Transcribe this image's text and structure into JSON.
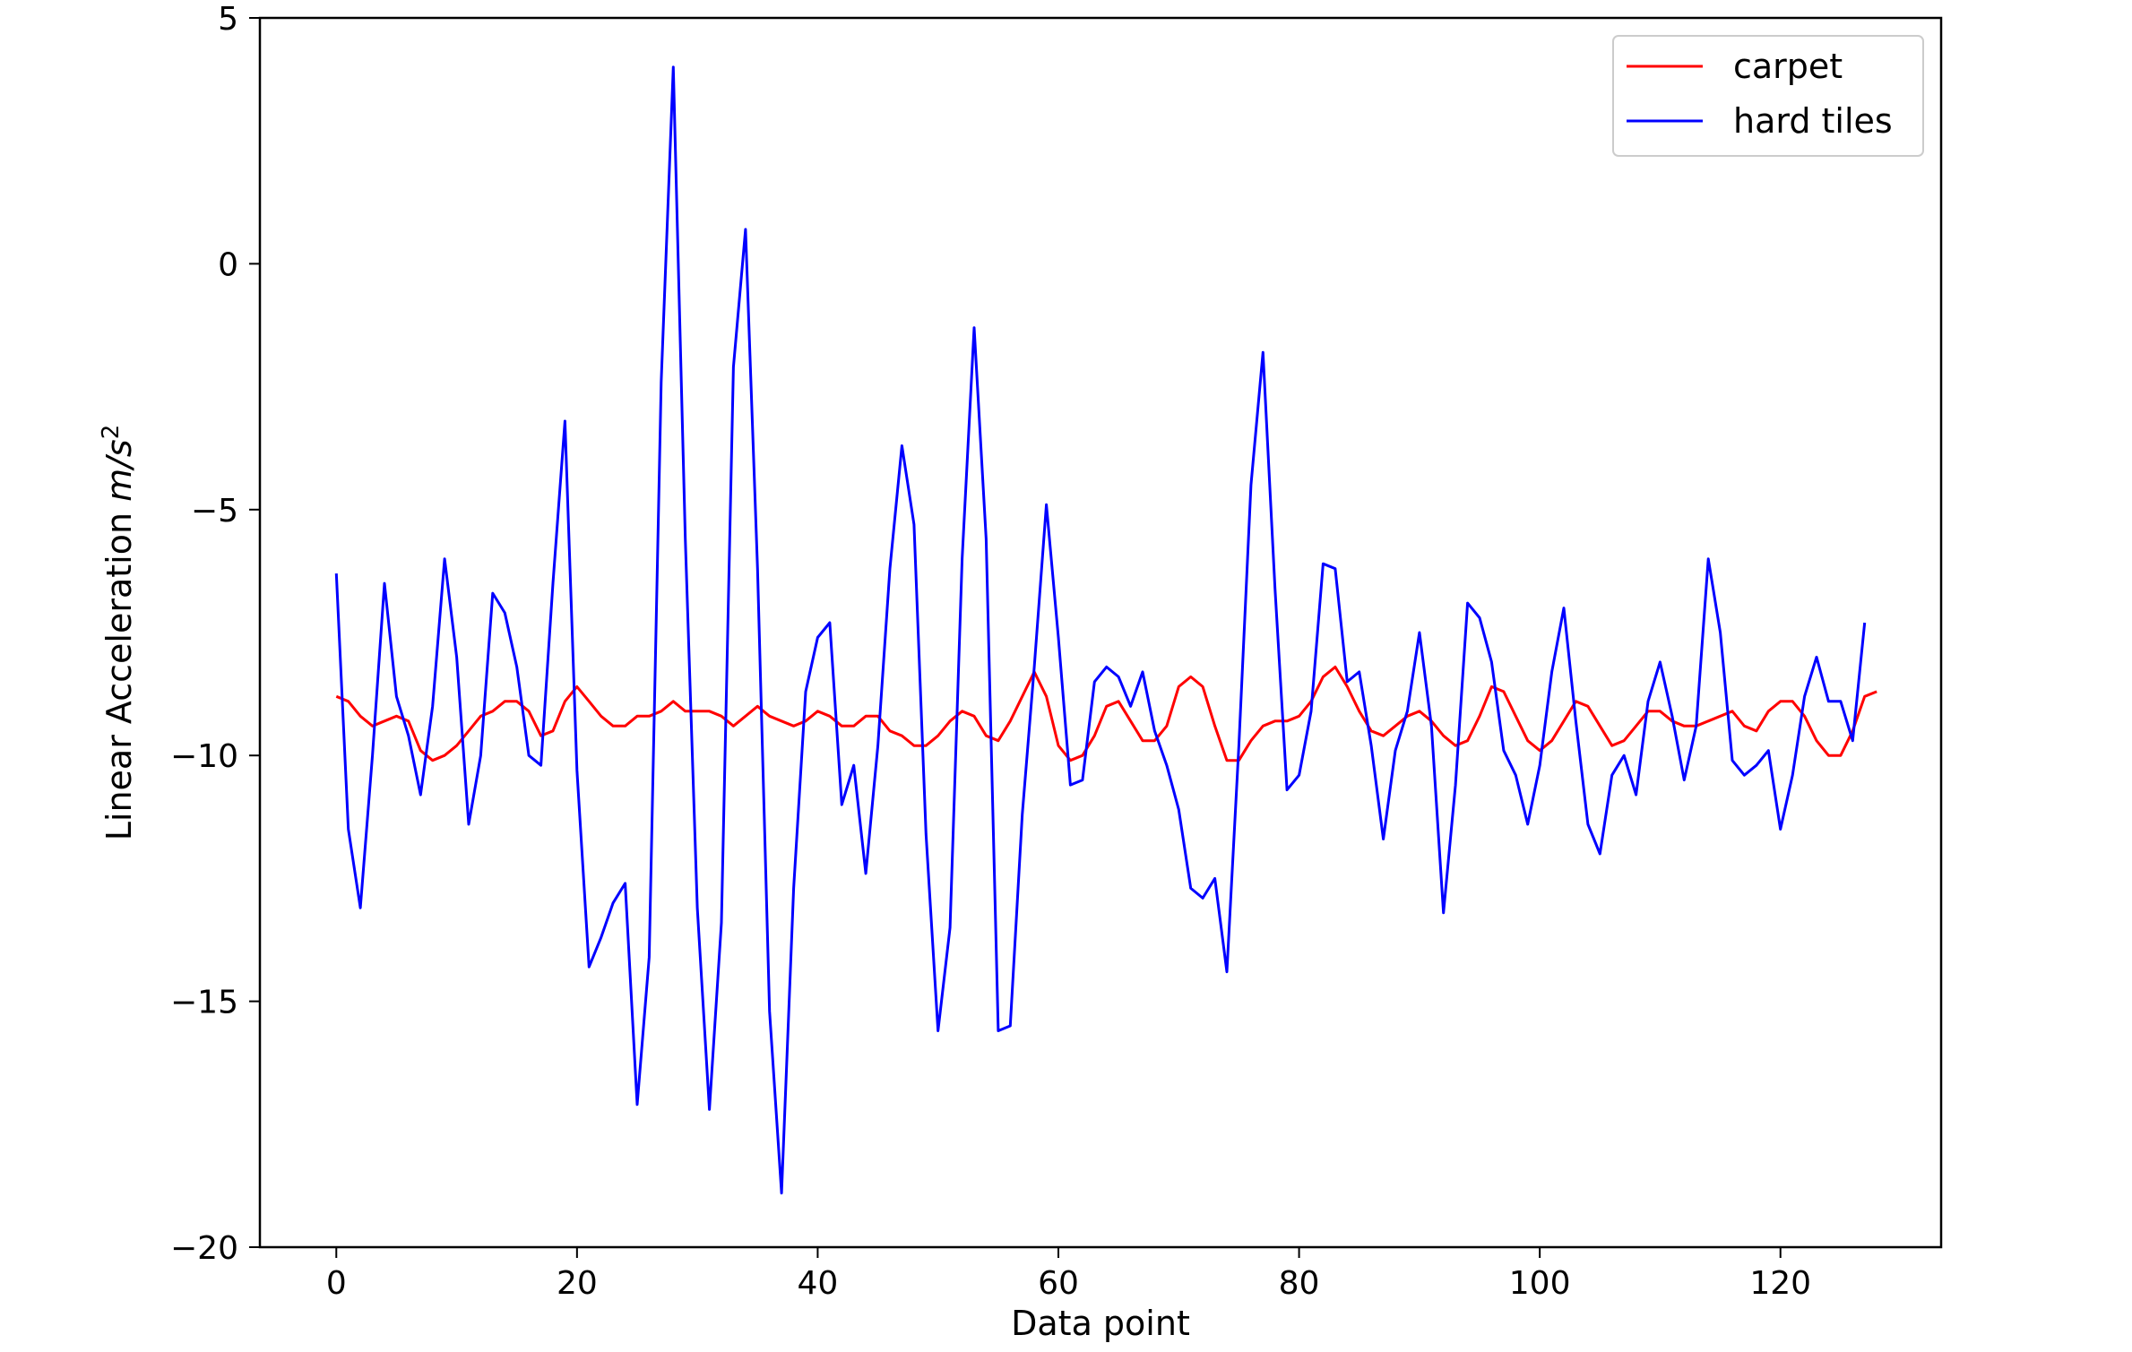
{
  "chart_data": {
    "type": "line",
    "title": "",
    "xlabel": "Data point",
    "ylabel_prefix": "Linear Acceleration ",
    "ylabel_unit": "m/s",
    "ylabel_exponent": "2",
    "xlim": [
      -6.35,
      133.35
    ],
    "ylim": [
      -20,
      5
    ],
    "xticks": [
      0,
      20,
      40,
      60,
      80,
      100,
      120
    ],
    "yticks": [
      5,
      0,
      -5,
      -10,
      -15,
      -20
    ],
    "xtick_labels": [
      "0",
      "20",
      "40",
      "60",
      "80",
      "100",
      "120"
    ],
    "ytick_labels": [
      "5",
      "0",
      "−5",
      "−10",
      "−15",
      "−20"
    ],
    "grid": false,
    "legend_position": "top-right",
    "series": [
      {
        "name": "carpet",
        "color": "#ff0000",
        "values": [
          -8.8,
          -8.9,
          -9.2,
          -9.4,
          -9.3,
          -9.2,
          -9.3,
          -9.9,
          -10.1,
          -10.0,
          -9.8,
          -9.5,
          -9.2,
          -9.1,
          -8.9,
          -8.9,
          -9.1,
          -9.6,
          -9.5,
          -8.9,
          -8.6,
          -8.9,
          -9.2,
          -9.4,
          -9.4,
          -9.2,
          -9.2,
          -9.1,
          -8.9,
          -9.1,
          -9.1,
          -9.1,
          -9.2,
          -9.4,
          -9.2,
          -9.0,
          -9.2,
          -9.3,
          -9.4,
          -9.3,
          -9.1,
          -9.2,
          -9.4,
          -9.4,
          -9.2,
          -9.2,
          -9.5,
          -9.6,
          -9.8,
          -9.8,
          -9.6,
          -9.3,
          -9.1,
          -9.2,
          -9.6,
          -9.7,
          -9.3,
          -8.8,
          -8.3,
          -8.8,
          -9.8,
          -10.1,
          -10.0,
          -9.6,
          -9.0,
          -8.9,
          -9.3,
          -9.7,
          -9.7,
          -9.4,
          -8.6,
          -8.4,
          -8.6,
          -9.4,
          -10.1,
          -10.1,
          -9.7,
          -9.4,
          -9.3,
          -9.3,
          -9.2,
          -8.9,
          -8.4,
          -8.2,
          -8.6,
          -9.1,
          -9.5,
          -9.6,
          -9.4,
          -9.2,
          -9.1,
          -9.3,
          -9.6,
          -9.8,
          -9.7,
          -9.2,
          -8.6,
          -8.7,
          -9.2,
          -9.7,
          -9.9,
          -9.7,
          -9.3,
          -8.9,
          -9.0,
          -9.4,
          -9.8,
          -9.7,
          -9.4,
          -9.1,
          -9.1,
          -9.3,
          -9.4,
          -9.4,
          -9.3,
          -9.2,
          -9.1,
          -9.4,
          -9.5,
          -9.1,
          -8.9,
          -8.9,
          -9.2,
          -9.7,
          -10.0,
          -10.0,
          -9.5,
          -8.8,
          -8.7
        ]
      },
      {
        "name": "hard tiles",
        "color": "#0000ff",
        "values": [
          -6.3,
          -11.5,
          -13.1,
          -10.0,
          -6.5,
          -8.8,
          -9.6,
          -10.8,
          -9.0,
          -6.0,
          -8.0,
          -11.4,
          -10.0,
          -6.7,
          -7.1,
          -8.2,
          -10.0,
          -10.2,
          -6.5,
          -3.2,
          -10.3,
          -14.3,
          -13.7,
          -13.0,
          -12.6,
          -17.1,
          -14.1,
          -2.4,
          4.0,
          -5.6,
          -13.1,
          -17.2,
          -13.4,
          -2.1,
          0.7,
          -6.2,
          -15.2,
          -18.9,
          -12.7,
          -8.7,
          -7.6,
          -7.3,
          -11.0,
          -10.2,
          -12.4,
          -9.8,
          -6.2,
          -3.7,
          -5.3,
          -11.6,
          -15.6,
          -13.5,
          -6.0,
          -1.3,
          -5.6,
          -15.6,
          -15.5,
          -11.2,
          -8.2,
          -4.9,
          -7.6,
          -10.6,
          -10.5,
          -8.5,
          -8.2,
          -8.4,
          -9.0,
          -8.3,
          -9.5,
          -10.2,
          -11.1,
          -12.7,
          -12.9,
          -12.5,
          -14.4,
          -9.8,
          -4.5,
          -1.8,
          -6.6,
          -10.7,
          -10.4,
          -9.1,
          -6.1,
          -6.2,
          -8.5,
          -8.3,
          -9.8,
          -11.7,
          -9.9,
          -9.1,
          -7.5,
          -9.4,
          -13.2,
          -10.6,
          -6.9,
          -7.2,
          -8.1,
          -9.9,
          -10.4,
          -11.4,
          -10.2,
          -8.3,
          -7.0,
          -9.3,
          -11.4,
          -12.0,
          -10.4,
          -10.0,
          -10.8,
          -8.9,
          -8.1,
          -9.2,
          -10.5,
          -9.4,
          -6.0,
          -7.5,
          -10.1,
          -10.4,
          -10.2,
          -9.9,
          -11.5,
          -10.4,
          -8.8,
          -8.0,
          -8.9,
          -8.9,
          -9.7,
          -7.3
        ]
      }
    ]
  }
}
